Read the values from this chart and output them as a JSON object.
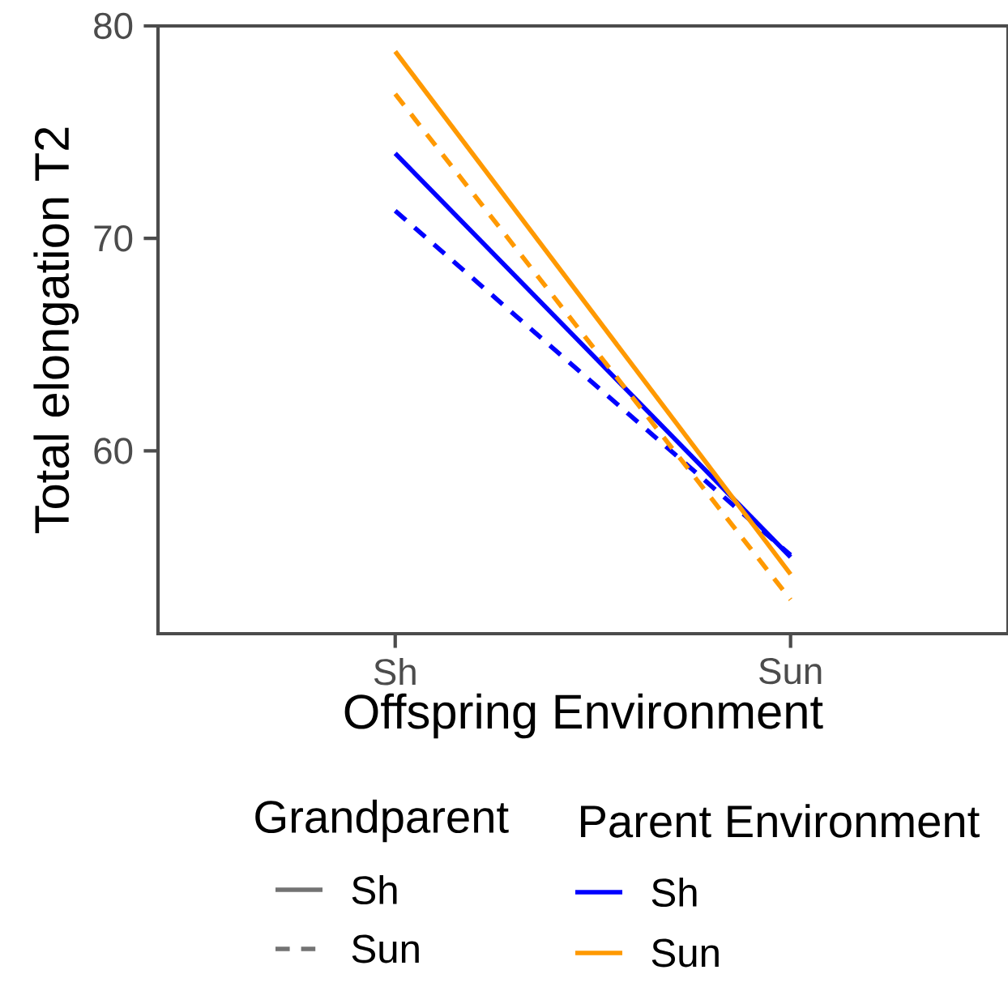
{
  "chart_data": {
    "type": "line",
    "xlabel": "Offspring Environment",
    "ylabel": "Total elongation T2",
    "categories": [
      "Sh",
      "Sun"
    ],
    "ylim": [
      51.4,
      80
    ],
    "yticks": [
      60,
      70,
      80
    ],
    "legend": "bottom",
    "legend_title": "Parent Environment",
    "grid": false,
    "marker": "none",
    "annotations": [
      "Grandparent",
      "Sh",
      "Sun"
    ],
    "series": [
      {
        "name": "Sh",
        "color": "#0000ff",
        "line_style": "solid",
        "values": [
          74.0,
          55.0
        ]
      },
      {
        "color": "#0000ff",
        "line_style": "dashed",
        "values": [
          71.3,
          55.1
        ]
      },
      {
        "name": "Sun",
        "color": "#ff9900",
        "line_style": "solid",
        "values": [
          78.8,
          54.2
        ]
      },
      {
        "color": "#ff9900",
        "line_style": "dashed",
        "values": [
          76.8,
          53.0
        ]
      }
    ]
  }
}
